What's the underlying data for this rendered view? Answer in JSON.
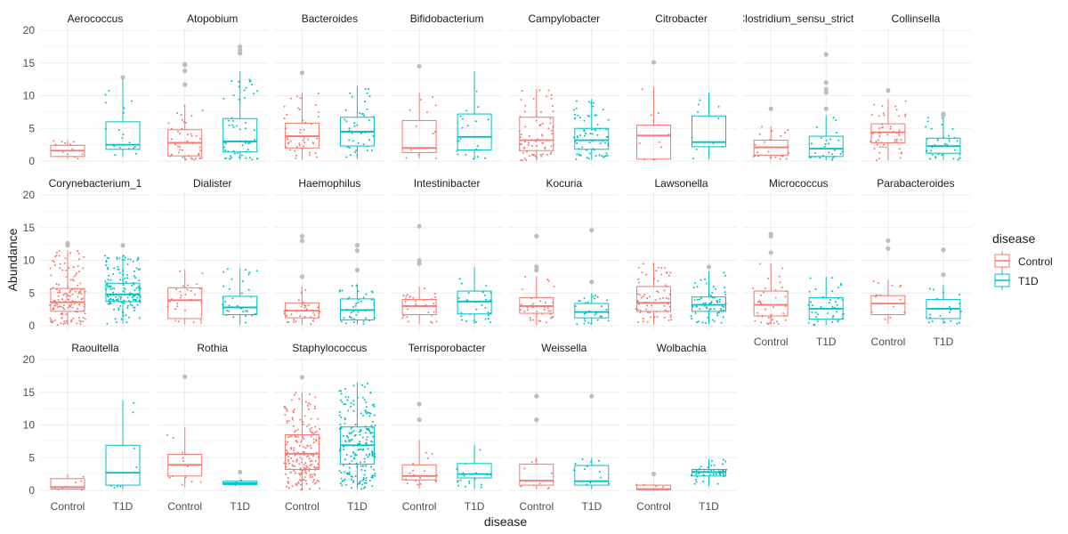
{
  "colors": {
    "control": "#F8766D",
    "t1d": "#00BFC4",
    "outlier": "#BDBDBD",
    "grid": "#EBEBEB",
    "text": "#4D4D4D"
  },
  "chart_data": {
    "type": "boxplot-faceted",
    "xlabel": "disease",
    "ylabel": "Abundance",
    "ylim": [
      0,
      20
    ],
    "yticks": [
      0,
      5,
      10,
      15,
      20
    ],
    "categories": [
      "Control",
      "T1D"
    ],
    "legend": {
      "title": "disease",
      "position": "right",
      "entries": [
        "Control",
        "T1D"
      ]
    },
    "grid": true,
    "facets": [
      {
        "name": "Aerococcus",
        "control": {
          "q1": 0.7,
          "median": 1.6,
          "q3": 2.4,
          "lo": 0.3,
          "hi": 3.2,
          "n": 12,
          "outliers": []
        },
        "t1d": {
          "q1": 1.8,
          "median": 2.5,
          "q3": 6.0,
          "lo": 0.6,
          "hi": 12.8,
          "n": 18,
          "outliers": [
            12.8
          ]
        }
      },
      {
        "name": "Atopobium",
        "control": {
          "q1": 0.8,
          "median": 2.8,
          "q3": 4.8,
          "lo": 0.1,
          "hi": 8.5,
          "n": 45,
          "outliers": [
            11.7,
            13.8,
            14.7,
            14.8
          ]
        },
        "t1d": {
          "q1": 1.4,
          "median": 3.0,
          "q3": 6.5,
          "lo": 0.2,
          "hi": 13.7,
          "n": 55,
          "outliers": [
            16.5,
            17.0,
            17.5
          ]
        }
      },
      {
        "name": "Bacteroides",
        "control": {
          "q1": 2.0,
          "median": 3.8,
          "q3": 5.8,
          "lo": 0.2,
          "hi": 10.5,
          "n": 45,
          "outliers": [
            13.5
          ]
        },
        "t1d": {
          "q1": 2.3,
          "median": 4.5,
          "q3": 6.7,
          "lo": 0.3,
          "hi": 11.5,
          "n": 45,
          "outliers": []
        }
      },
      {
        "name": "Bifidobacterium",
        "control": {
          "q1": 1.3,
          "median": 2.0,
          "q3": 6.2,
          "lo": 0.4,
          "hi": 10.5,
          "n": 12,
          "outliers": [
            14.5
          ]
        },
        "t1d": {
          "q1": 1.7,
          "median": 3.7,
          "q3": 7.2,
          "lo": 0.3,
          "hi": 13.7,
          "n": 20,
          "outliers": []
        }
      },
      {
        "name": "Campylobacter",
        "control": {
          "q1": 1.6,
          "median": 3.2,
          "q3": 6.7,
          "lo": 0.1,
          "hi": 11.0,
          "n": 70,
          "outliers": []
        },
        "t1d": {
          "q1": 1.8,
          "median": 3.2,
          "q3": 5.0,
          "lo": 0.2,
          "hi": 9.5,
          "n": 70,
          "outliers": []
        }
      },
      {
        "name": "Citrobacter",
        "control": {
          "q1": 0.3,
          "median": 3.9,
          "q3": 5.5,
          "lo": 0.2,
          "hi": 11.3,
          "n": 12,
          "outliers": [
            15.1
          ]
        },
        "t1d": {
          "q1": 2.2,
          "median": 2.9,
          "q3": 6.9,
          "lo": 0.3,
          "hi": 10.5,
          "n": 10,
          "outliers": []
        }
      },
      {
        "name": "Clostridium_sensu_stricto",
        "control": {
          "q1": 0.9,
          "median": 2.1,
          "q3": 3.2,
          "lo": 0.3,
          "hi": 5.3,
          "n": 25,
          "outliers": [
            8.0
          ]
        },
        "t1d": {
          "q1": 0.7,
          "median": 1.9,
          "q3": 3.8,
          "lo": 0.1,
          "hi": 7.0,
          "n": 30,
          "outliers": [
            8.0,
            10.5,
            11.0,
            12.0,
            16.3
          ]
        }
      },
      {
        "name": "Collinsella",
        "control": {
          "q1": 2.8,
          "median": 4.4,
          "q3": 5.7,
          "lo": 0.1,
          "hi": 9.5,
          "n": 50,
          "outliers": [
            10.8
          ]
        },
        "t1d": {
          "q1": 1.2,
          "median": 2.3,
          "q3": 3.5,
          "lo": 0.2,
          "hi": 6.8,
          "n": 40,
          "outliers": [
            7.0,
            7.2
          ]
        }
      },
      {
        "name": "Corynebacterium_1",
        "control": {
          "q1": 2.2,
          "median": 3.6,
          "q3": 5.7,
          "lo": 0.1,
          "hi": 11.5,
          "n": 150,
          "outliers": [
            12.3,
            12.6
          ]
        },
        "t1d": {
          "q1": 3.7,
          "median": 4.8,
          "q3": 6.5,
          "lo": 0.3,
          "hi": 10.8,
          "n": 150,
          "outliers": [
            12.3
          ]
        }
      },
      {
        "name": "Dialister",
        "control": {
          "q1": 1.1,
          "median": 3.9,
          "q3": 5.8,
          "lo": 0.2,
          "hi": 8.6,
          "n": 30,
          "outliers": []
        },
        "t1d": {
          "q1": 1.7,
          "median": 2.8,
          "q3": 4.5,
          "lo": 0.1,
          "hi": 8.8,
          "n": 35,
          "outliers": []
        }
      },
      {
        "name": "Haemophilus",
        "control": {
          "q1": 1.2,
          "median": 2.3,
          "q3": 3.5,
          "lo": 0.1,
          "hi": 6.0,
          "n": 40,
          "outliers": [
            7.5,
            13.0,
            13.7
          ]
        },
        "t1d": {
          "q1": 0.9,
          "median": 2.4,
          "q3": 4.1,
          "lo": 0.2,
          "hi": 6.3,
          "n": 40,
          "outliers": [
            8.5,
            11.5,
            12.3
          ]
        }
      },
      {
        "name": "Intestinibacter",
        "control": {
          "q1": 1.7,
          "median": 3.0,
          "q3": 4.0,
          "lo": 0.2,
          "hi": 6.0,
          "n": 30,
          "outliers": [
            9.5,
            10.0,
            15.2
          ]
        },
        "t1d": {
          "q1": 1.8,
          "median": 3.7,
          "q3": 5.3,
          "lo": 0.3,
          "hi": 9.0,
          "n": 30,
          "outliers": []
        }
      },
      {
        "name": "Kocuria",
        "control": {
          "q1": 1.9,
          "median": 3.0,
          "q3": 4.3,
          "lo": 0.1,
          "hi": 7.5,
          "n": 35,
          "outliers": [
            8.5,
            9.0,
            13.7
          ]
        },
        "t1d": {
          "q1": 1.2,
          "median": 2.1,
          "q3": 3.4,
          "lo": 0.2,
          "hi": 5.0,
          "n": 30,
          "outliers": [
            6.7,
            14.6
          ]
        }
      },
      {
        "name": "Lawsonella",
        "control": {
          "q1": 2.2,
          "median": 3.5,
          "q3": 6.0,
          "lo": 0.2,
          "hi": 9.5,
          "n": 70,
          "outliers": []
        },
        "t1d": {
          "q1": 2.2,
          "median": 3.2,
          "q3": 4.4,
          "lo": 0.3,
          "hi": 8.3,
          "n": 70,
          "outliers": [
            9.0
          ]
        }
      },
      {
        "name": "Micrococcus",
        "control": {
          "q1": 1.5,
          "median": 3.2,
          "q3": 5.3,
          "lo": 0.2,
          "hi": 9.5,
          "n": 40,
          "outliers": [
            11.2,
            13.7,
            14.0
          ]
        },
        "t1d": {
          "q1": 1.0,
          "median": 2.6,
          "q3": 4.3,
          "lo": 0.1,
          "hi": 7.5,
          "n": 40,
          "outliers": []
        }
      },
      {
        "name": "Parabacteroides",
        "control": {
          "q1": 1.7,
          "median": 3.4,
          "q3": 4.6,
          "lo": 0.3,
          "hi": 7.0,
          "n": 15,
          "outliers": [
            11.8,
            13.0
          ]
        },
        "t1d": {
          "q1": 1.1,
          "median": 2.6,
          "q3": 4.0,
          "lo": 0.3,
          "hi": 6.2,
          "n": 20,
          "outliers": [
            7.8,
            11.6
          ]
        }
      },
      {
        "name": "Raoultella",
        "control": {
          "q1": 0.2,
          "median": 0.5,
          "q3": 1.8,
          "lo": 0.1,
          "hi": 2.5,
          "n": 8,
          "outliers": []
        },
        "t1d": {
          "q1": 0.8,
          "median": 2.7,
          "q3": 6.9,
          "lo": 0.2,
          "hi": 13.8,
          "n": 8,
          "outliers": []
        }
      },
      {
        "name": "Rothia",
        "control": {
          "q1": 2.2,
          "median": 3.9,
          "q3": 5.5,
          "lo": 0.5,
          "hi": 9.6,
          "n": 12,
          "outliers": [
            17.4
          ]
        },
        "t1d": {
          "q1": 0.9,
          "median": 1.1,
          "q3": 1.4,
          "lo": 0.8,
          "hi": 1.6,
          "n": 3,
          "outliers": [
            2.8
          ]
        }
      },
      {
        "name": "Staphylococcus",
        "control": {
          "q1": 3.2,
          "median": 5.6,
          "q3": 8.5,
          "lo": 0.1,
          "hi": 15.0,
          "n": 200,
          "outliers": [
            17.3
          ]
        },
        "t1d": {
          "q1": 4.0,
          "median": 6.9,
          "q3": 9.7,
          "lo": 0.2,
          "hi": 16.5,
          "n": 200,
          "outliers": []
        }
      },
      {
        "name": "Terrisporobacter",
        "control": {
          "q1": 1.6,
          "median": 2.2,
          "q3": 3.9,
          "lo": 0.3,
          "hi": 7.7,
          "n": 20,
          "outliers": [
            10.8,
            13.2
          ]
        },
        "t1d": {
          "q1": 1.9,
          "median": 2.5,
          "q3": 4.1,
          "lo": 0.3,
          "hi": 7.0,
          "n": 20,
          "outliers": []
        }
      },
      {
        "name": "Weissella",
        "control": {
          "q1": 0.8,
          "median": 1.5,
          "q3": 4.0,
          "lo": 0.2,
          "hi": 5.0,
          "n": 12,
          "outliers": [
            10.8,
            14.4
          ]
        },
        "t1d": {
          "q1": 0.8,
          "median": 1.4,
          "q3": 3.8,
          "lo": 0.2,
          "hi": 5.0,
          "n": 12,
          "outliers": [
            14.4
          ]
        }
      },
      {
        "name": "Wolbachia",
        "control": {
          "q1": 0.1,
          "median": 0.2,
          "q3": 0.8,
          "lo": 0.0,
          "hi": 1.0,
          "n": 8,
          "outliers": [
            2.5
          ]
        },
        "t1d": {
          "q1": 2.2,
          "median": 2.8,
          "q3": 3.2,
          "lo": 0.7,
          "hi": 4.8,
          "n": 50,
          "outliers": []
        }
      }
    ]
  }
}
